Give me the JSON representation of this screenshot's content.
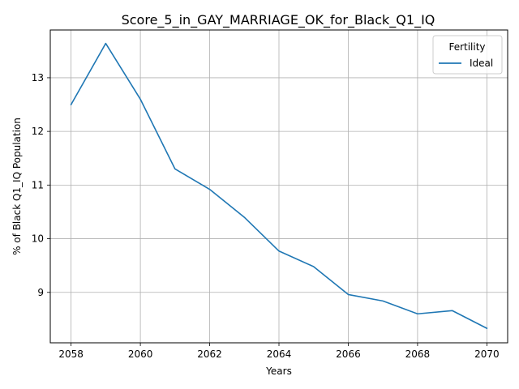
{
  "chart_data": {
    "type": "line",
    "title": "Score_5_in_GAY_MARRIAGE_OK_for_Black_Q1_IQ",
    "xlabel": "Years",
    "ylabel": "% of Black Q1_IQ Population",
    "x": [
      2058,
      2059,
      2060,
      2061,
      2062,
      2063,
      2064,
      2065,
      2066,
      2067,
      2068,
      2069,
      2070
    ],
    "xlim": [
      2057.4,
      2070.6
    ],
    "ylim": [
      8.06,
      13.89
    ],
    "xticks": [
      2058,
      2060,
      2062,
      2064,
      2066,
      2068,
      2070
    ],
    "yticks": [
      9,
      10,
      11,
      12,
      13
    ],
    "grid": true,
    "legend": {
      "title": "Fertility",
      "placement": "top-right"
    },
    "series": [
      {
        "name": "Ideal",
        "color": "#1f77b4",
        "values": [
          12.5,
          13.64,
          12.6,
          11.3,
          10.92,
          10.4,
          9.77,
          9.48,
          8.96,
          8.84,
          8.6,
          8.66,
          8.33
        ]
      }
    ]
  }
}
